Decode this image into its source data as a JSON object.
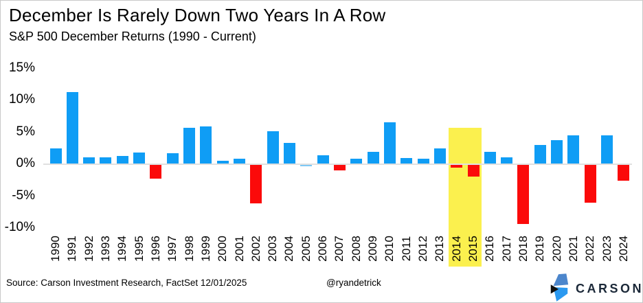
{
  "header": {
    "title": "December Is Rarely Down Two Years In A Row",
    "subtitle": "S&P 500 December Returns (1990 - Current)"
  },
  "chart_data": {
    "type": "bar",
    "title": "December Is Rarely Down Two Years In A Row",
    "subtitle": "S&P 500 December Returns (1990 - Current)",
    "categories": [
      "1990",
      "1991",
      "1992",
      "1993",
      "1994",
      "1995",
      "1996",
      "1997",
      "1998",
      "1999",
      "2000",
      "2001",
      "2002",
      "2003",
      "2004",
      "2005",
      "2006",
      "2007",
      "2008",
      "2009",
      "2010",
      "2011",
      "2012",
      "2013",
      "2014",
      "2015",
      "2016",
      "2017",
      "2018",
      "2019",
      "2020",
      "2021",
      "2022",
      "2023",
      "2024"
    ],
    "values": [
      2.4,
      11.2,
      1.0,
      1.0,
      1.2,
      1.7,
      -2.2,
      1.6,
      5.6,
      5.8,
      0.4,
      0.8,
      -6.0,
      5.1,
      3.2,
      -0.1,
      1.3,
      -0.9,
      0.8,
      1.8,
      6.5,
      0.9,
      0.7,
      2.4,
      -0.4,
      -1.8,
      1.8,
      1.0,
      -9.2,
      2.9,
      3.7,
      4.4,
      -5.9,
      4.4,
      -2.5
    ],
    "bar_colors": [
      "blue",
      "blue",
      "blue",
      "blue",
      "blue",
      "blue",
      "red",
      "blue",
      "blue",
      "blue",
      "blue",
      "blue",
      "red",
      "blue",
      "blue",
      "lightblue",
      "blue",
      "red",
      "blue",
      "blue",
      "blue",
      "blue",
      "blue",
      "blue",
      "red",
      "red",
      "blue",
      "blue",
      "red",
      "blue",
      "blue",
      "blue",
      "red",
      "blue",
      "red"
    ],
    "color_map": {
      "blue": "#0f9df5",
      "red": "#fb0a0a",
      "lightblue": "#7ec8f5"
    },
    "y_ticks": [
      "15%",
      "10%",
      "5%",
      "0%",
      "-5%",
      "-10%"
    ],
    "ylim": [
      -10.5,
      15.5
    ],
    "grid": "zero-line-only",
    "zero_line_color": "#e0e0e0",
    "legend": "none",
    "x_label_rotation": 90,
    "highlight": {
      "categories": [
        "2014",
        "2015"
      ],
      "color": "#fbf04e"
    }
  },
  "footer": {
    "source": "Source: Carson Investment Research, FactSet 12/01/2025",
    "handle": "@ryandetrick"
  },
  "logo": {
    "text": "CARSON",
    "mark_colors": {
      "top_blade": "#4c86cc",
      "bottom_blade": "#2b99f0",
      "notch": "#101010"
    }
  }
}
